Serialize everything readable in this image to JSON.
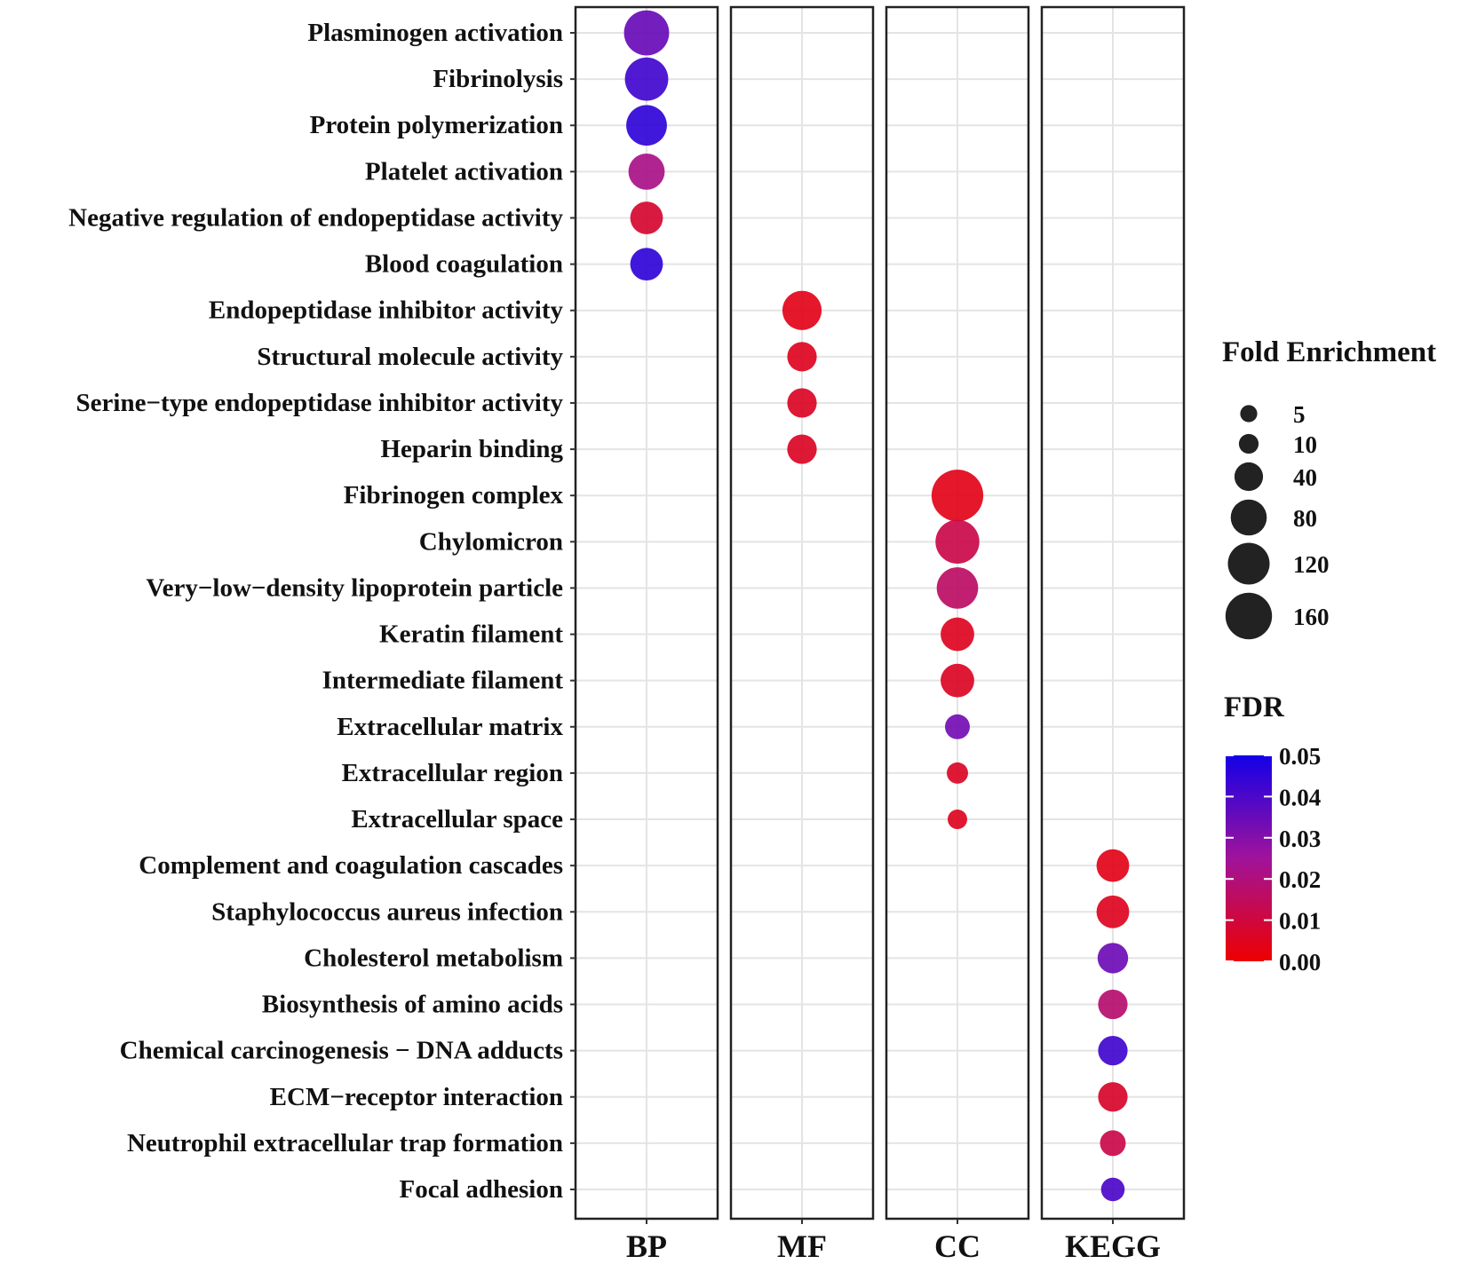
{
  "chart_data": {
    "type": "scatter",
    "subtype": "faceted-dot-plot",
    "facets": [
      "BP",
      "MF",
      "CC",
      "KEGG"
    ],
    "terms": [
      {
        "term": "Plasminogen activation",
        "category": "BP",
        "fold_enrichment": 140,
        "fdr": 0.035
      },
      {
        "term": "Fibrinolysis",
        "category": "BP",
        "fold_enrichment": 125,
        "fdr": 0.042
      },
      {
        "term": "Protein polymerization",
        "category": "BP",
        "fold_enrichment": 105,
        "fdr": 0.045
      },
      {
        "term": "Platelet activation",
        "category": "BP",
        "fold_enrichment": 75,
        "fdr": 0.022
      },
      {
        "term": "Negative regulation of endopeptidase activity",
        "category": "BP",
        "fold_enrichment": 55,
        "fdr": 0.008
      },
      {
        "term": "Blood coagulation",
        "category": "BP",
        "fold_enrichment": 55,
        "fdr": 0.045
      },
      {
        "term": "Endopeptidase inhibitor activity",
        "category": "MF",
        "fold_enrichment": 95,
        "fdr": 0.004
      },
      {
        "term": "Structural molecule activity",
        "category": "MF",
        "fold_enrichment": 40,
        "fdr": 0.005
      },
      {
        "term": "Serine−type endopeptidase inhibitor activity",
        "category": "MF",
        "fold_enrichment": 40,
        "fdr": 0.006
      },
      {
        "term": "Heparin binding",
        "category": "MF",
        "fold_enrichment": 40,
        "fdr": 0.006
      },
      {
        "term": "Fibrinogen complex",
        "category": "CC",
        "fold_enrichment": 200,
        "fdr": 0.004
      },
      {
        "term": "Chylomicron",
        "category": "CC",
        "fold_enrichment": 130,
        "fdr": 0.012
      },
      {
        "term": "Very−low−density lipoprotein particle",
        "category": "CC",
        "fold_enrichment": 110,
        "fdr": 0.016
      },
      {
        "term": "Keratin filament",
        "category": "CC",
        "fold_enrichment": 60,
        "fdr": 0.005
      },
      {
        "term": "Intermediate filament",
        "category": "CC",
        "fold_enrichment": 60,
        "fdr": 0.006
      },
      {
        "term": "Extracellular matrix",
        "category": "CC",
        "fold_enrichment": 22,
        "fdr": 0.033
      },
      {
        "term": "Extracellular region",
        "category": "CC",
        "fold_enrichment": 12,
        "fdr": 0.006
      },
      {
        "term": "Extracellular space",
        "category": "CC",
        "fold_enrichment": 8,
        "fdr": 0.005
      },
      {
        "term": "Complement and coagulation cascades",
        "category": "KEGG",
        "fold_enrichment": 55,
        "fdr": 0.004
      },
      {
        "term": "Staphylococcus aureus infection",
        "category": "KEGG",
        "fold_enrichment": 55,
        "fdr": 0.005
      },
      {
        "term": "Cholesterol metabolism",
        "category": "KEGG",
        "fold_enrichment": 45,
        "fdr": 0.034
      },
      {
        "term": "Biosynthesis of amino acids",
        "category": "KEGG",
        "fold_enrichment": 40,
        "fdr": 0.018
      },
      {
        "term": "Chemical carcinogenesis − DNA adducts",
        "category": "KEGG",
        "fold_enrichment": 40,
        "fdr": 0.042
      },
      {
        "term": "ECM−receptor interaction",
        "category": "KEGG",
        "fold_enrichment": 40,
        "fdr": 0.007
      },
      {
        "term": "Neutrophil extracellular trap formation",
        "category": "KEGG",
        "fold_enrichment": 25,
        "fdr": 0.012
      },
      {
        "term": "Focal adhesion",
        "category": "KEGG",
        "fold_enrichment": 18,
        "fdr": 0.04
      }
    ],
    "size_legend": {
      "title": "Fold Enrichment",
      "breaks": [
        5,
        10,
        40,
        80,
        120,
        160
      ],
      "labels": [
        "5",
        "10",
        "40",
        "80",
        "120",
        "160"
      ]
    },
    "color_legend": {
      "title": "FDR",
      "range": [
        0,
        0.05
      ],
      "breaks": [
        0.05,
        0.04,
        0.03,
        0.02,
        0.01,
        0.0
      ],
      "labels": [
        "0.05",
        "0.04",
        "0.03",
        "0.02",
        "0.01",
        "0.00"
      ],
      "low_color": "#ee0000",
      "mid_color": "#a0139a",
      "high_color": "#1400e8"
    },
    "grid": true,
    "xlabel": "",
    "ylabel": "",
    "point_color": "#222222"
  }
}
